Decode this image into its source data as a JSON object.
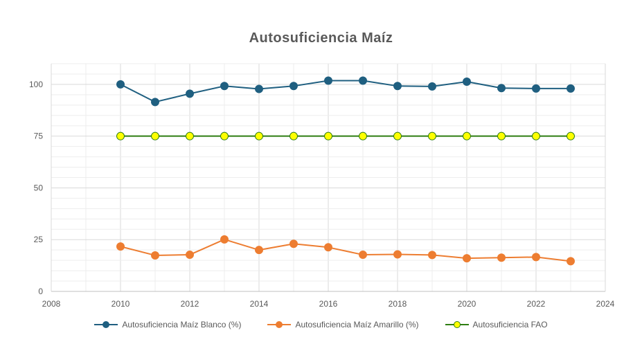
{
  "chart_data": {
    "type": "line",
    "title": "Autosuficiencia  Maíz",
    "xlabel": "",
    "ylabel": "",
    "xlim": [
      2008,
      2024
    ],
    "ylim": [
      0,
      110
    ],
    "x_ticks": [
      2008,
      2010,
      2012,
      2014,
      2016,
      2018,
      2020,
      2022,
      2024
    ],
    "y_ticks": [
      0,
      25,
      50,
      75,
      100
    ],
    "grid": true,
    "legend_position": "bottom",
    "x": [
      2010,
      2011,
      2012,
      2013,
      2014,
      2015,
      2016,
      2017,
      2018,
      2019,
      2020,
      2021,
      2022,
      2023
    ],
    "series": [
      {
        "name": "Autosuficiencia Maíz Blanco (%)",
        "color": "#1f5f80",
        "marker_fill": "#1f5f80",
        "values": [
          100,
          91.5,
          95.5,
          99.2,
          97.8,
          99.2,
          101.8,
          101.8,
          99.2,
          99.0,
          101.3,
          98.2,
          98.0,
          98.0
        ]
      },
      {
        "name": "Autosuficiencia Maíz Amarillo (%)",
        "color": "#ed7d31",
        "marker_fill": "#ed7d31",
        "values": [
          21.7,
          17.4,
          17.7,
          25.1,
          20.0,
          23.0,
          21.3,
          17.7,
          17.9,
          17.6,
          16.0,
          16.3,
          16.6,
          14.6
        ]
      },
      {
        "name": "Autosuficiencia FAO",
        "color": "#2e7d11",
        "marker_fill": "#ffff00",
        "values": [
          75,
          75,
          75,
          75,
          75,
          75,
          75,
          75,
          75,
          75,
          75,
          75,
          75,
          75
        ]
      }
    ]
  }
}
